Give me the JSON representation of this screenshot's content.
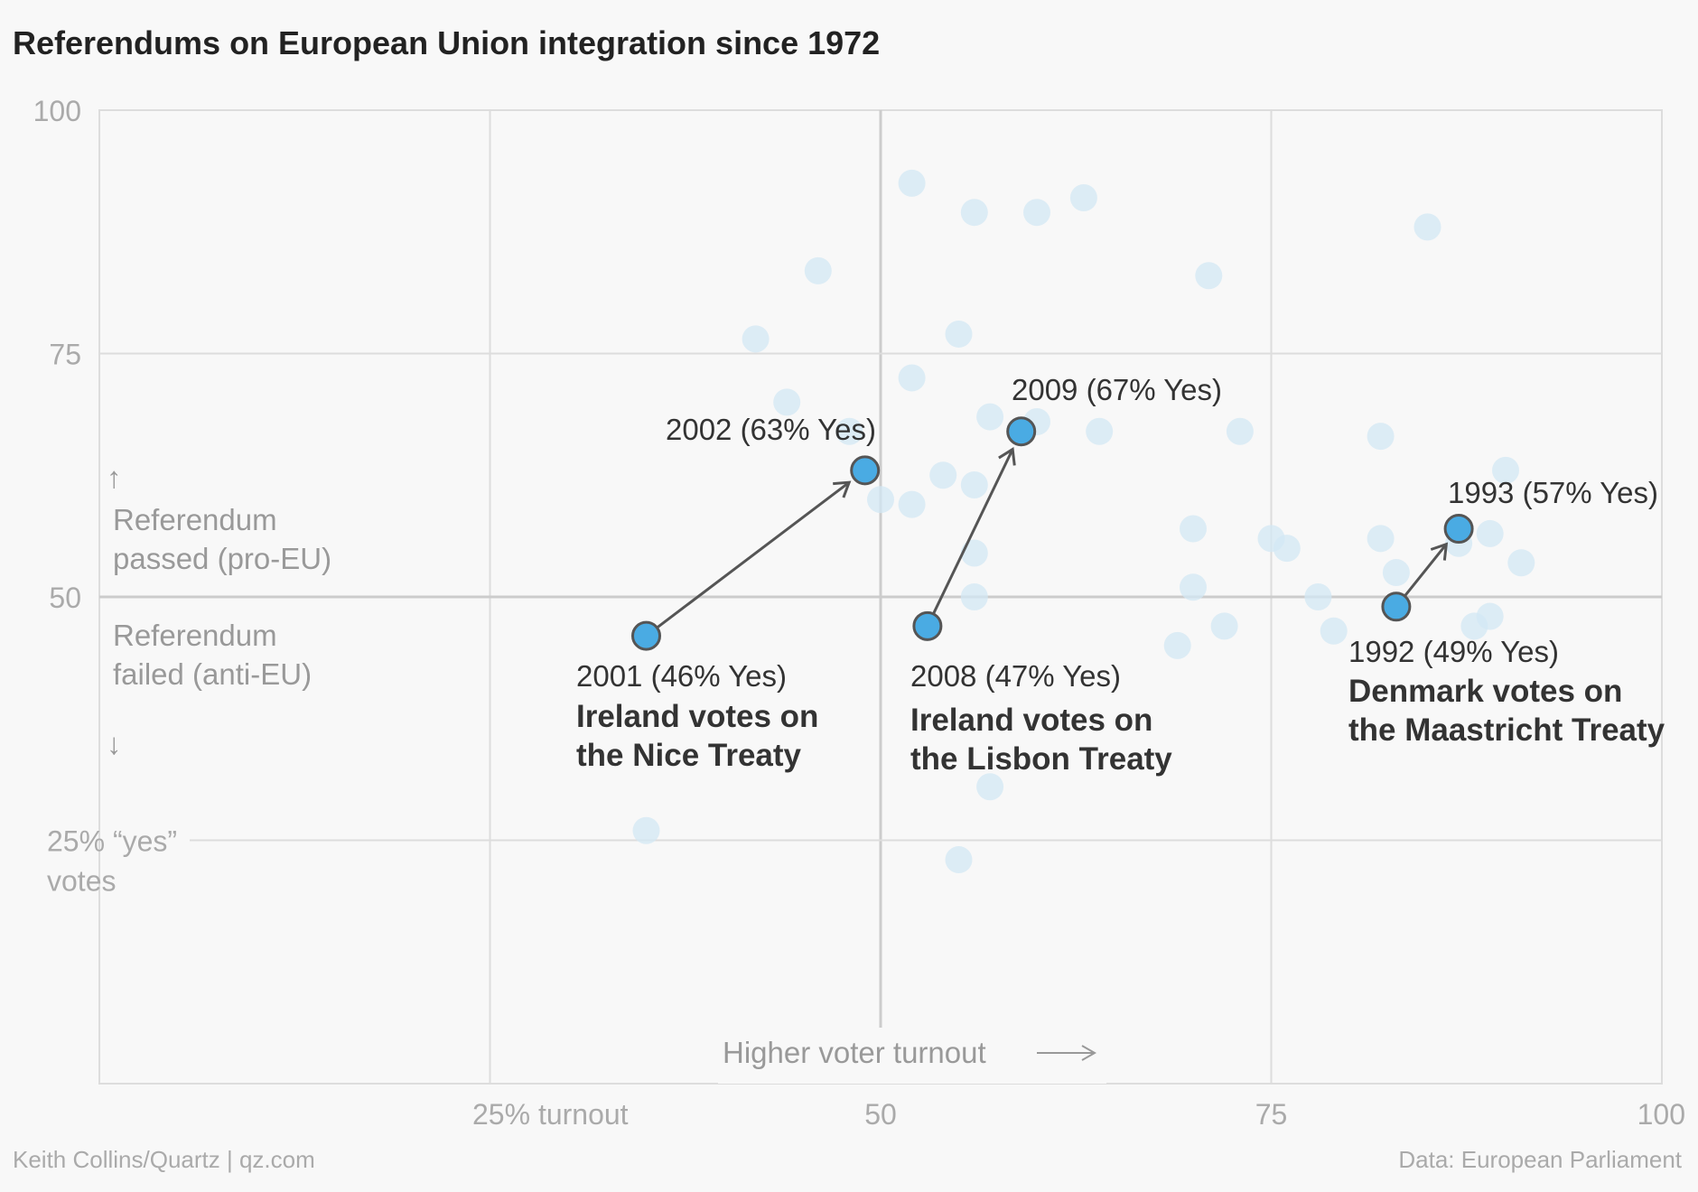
{
  "chart_data": {
    "type": "scatter",
    "title": "Referendums on European Union integration since 1972",
    "xlabel": "Higher voter turnout",
    "ylabel": "",
    "xlim": [
      0,
      100
    ],
    "ylim": [
      0,
      100
    ],
    "x_ticks": [
      {
        "value": 25,
        "label": "25% turnout"
      },
      {
        "value": 50,
        "label": "50"
      },
      {
        "value": 75,
        "label": "75"
      },
      {
        "value": 100,
        "label": "100"
      }
    ],
    "y_ticks": [
      {
        "value": 100,
        "label": "100"
      },
      {
        "value": 75,
        "label": "75"
      },
      {
        "value": 50,
        "label": "50"
      },
      {
        "value": 25,
        "label_line1": "25% “yes”",
        "label_line2": "votes"
      }
    ],
    "region_labels": {
      "passed_line1": "Referendum",
      "passed_line2": "passed (pro-EU)",
      "failed_line1": "Referendum",
      "failed_line2": "failed (anti-EU)"
    },
    "background_points": [
      {
        "x": 35,
        "y": 26
      },
      {
        "x": 42,
        "y": 76.5
      },
      {
        "x": 44,
        "y": 70
      },
      {
        "x": 46,
        "y": 83.5
      },
      {
        "x": 48,
        "y": 67
      },
      {
        "x": 50,
        "y": 60
      },
      {
        "x": 52,
        "y": 92.5
      },
      {
        "x": 52,
        "y": 72.5
      },
      {
        "x": 52,
        "y": 59.5
      },
      {
        "x": 54,
        "y": 62.5
      },
      {
        "x": 55,
        "y": 77
      },
      {
        "x": 55,
        "y": 23
      },
      {
        "x": 56,
        "y": 89.5
      },
      {
        "x": 56,
        "y": 61.5
      },
      {
        "x": 56,
        "y": 54.5
      },
      {
        "x": 56,
        "y": 50
      },
      {
        "x": 57,
        "y": 68.5
      },
      {
        "x": 57,
        "y": 30.5
      },
      {
        "x": 60,
        "y": 89.5
      },
      {
        "x": 60,
        "y": 68
      },
      {
        "x": 63,
        "y": 91
      },
      {
        "x": 64,
        "y": 67
      },
      {
        "x": 69,
        "y": 45
      },
      {
        "x": 70,
        "y": 57
      },
      {
        "x": 70,
        "y": 51
      },
      {
        "x": 71,
        "y": 83
      },
      {
        "x": 72,
        "y": 47
      },
      {
        "x": 73,
        "y": 67
      },
      {
        "x": 75,
        "y": 56
      },
      {
        "x": 76,
        "y": 55
      },
      {
        "x": 78,
        "y": 50
      },
      {
        "x": 79,
        "y": 46.5
      },
      {
        "x": 82,
        "y": 66.5
      },
      {
        "x": 82,
        "y": 56
      },
      {
        "x": 83,
        "y": 52.5
      },
      {
        "x": 85,
        "y": 88
      },
      {
        "x": 87,
        "y": 55.5
      },
      {
        "x": 88,
        "y": 47
      },
      {
        "x": 89,
        "y": 56.5
      },
      {
        "x": 89,
        "y": 48
      },
      {
        "x": 90,
        "y": 63
      },
      {
        "x": 91,
        "y": 53.5
      }
    ],
    "highlight_points": [
      {
        "x": 35,
        "y": 46,
        "label": "2001 (46% Yes)"
      },
      {
        "x": 49,
        "y": 63,
        "label": "2002 (63% Yes)"
      },
      {
        "x": 53,
        "y": 47,
        "label": "2008 (47% Yes)"
      },
      {
        "x": 59,
        "y": 67,
        "label": "2009 (67% Yes)"
      },
      {
        "x": 83,
        "y": 49,
        "label": "1992 (49% Yes)"
      },
      {
        "x": 87,
        "y": 57,
        "label": "1993 (57% Yes)"
      }
    ],
    "annotations": [
      {
        "from": 0,
        "to": 1,
        "title_line1": "Ireland votes on",
        "title_line2": "the Nice Treaty"
      },
      {
        "from": 2,
        "to": 3,
        "title_line1": "Ireland votes on",
        "title_line2": "the Lisbon Treaty"
      },
      {
        "from": 4,
        "to": 5,
        "title_line1": "Denmark votes on",
        "title_line2": "the Maastricht Treaty"
      }
    ],
    "colors": {
      "background_point": "#d3e8f4",
      "highlight_point": "#4aabe3",
      "highlight_stroke": "#555555",
      "arrow": "#555555",
      "grid": "#dddddd",
      "axis_line": "#cccccc"
    }
  },
  "footer": {
    "credit": "Keith Collins/Quartz | qz.com",
    "source": "Data: European Parliament"
  }
}
